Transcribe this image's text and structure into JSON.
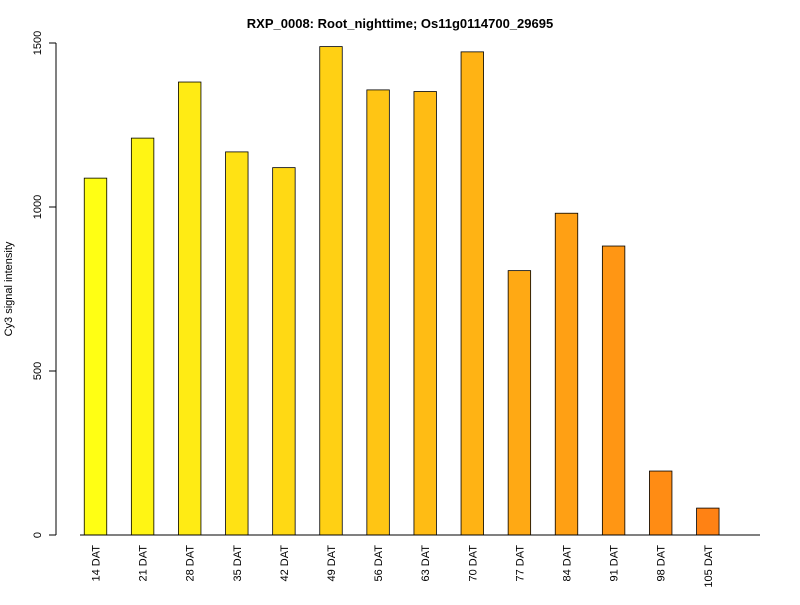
{
  "chart_data": {
    "type": "bar",
    "title": "RXP_0008: Root_nighttime; Os11g0114700_29695",
    "xlabel": "",
    "ylabel": "Cy3 signal intensity",
    "categories": [
      "14 DAT",
      "21 DAT",
      "28 DAT",
      "35 DAT",
      "42 DAT",
      "49 DAT",
      "56 DAT",
      "63 DAT",
      "70 DAT",
      "77 DAT",
      "84 DAT",
      "91 DAT",
      "98 DAT",
      "105 DAT"
    ],
    "values": [
      1088,
      1210,
      1381,
      1168,
      1120,
      1489,
      1357,
      1352,
      1473,
      806,
      981,
      881,
      195,
      82
    ],
    "colors": [
      "#FFFF14",
      "#FFF514",
      "#FFEB14",
      "#FFE214",
      "#FFD914",
      "#FFD014",
      "#FFC514",
      "#FFBC14",
      "#FFB314",
      "#FFA914",
      "#FFA014",
      "#FF9614",
      "#FF8C14",
      "#FF8214"
    ],
    "yticks": [
      0,
      500,
      1000,
      1500
    ],
    "ylim": [
      0,
      1500
    ],
    "grid": false,
    "legend": "none"
  }
}
